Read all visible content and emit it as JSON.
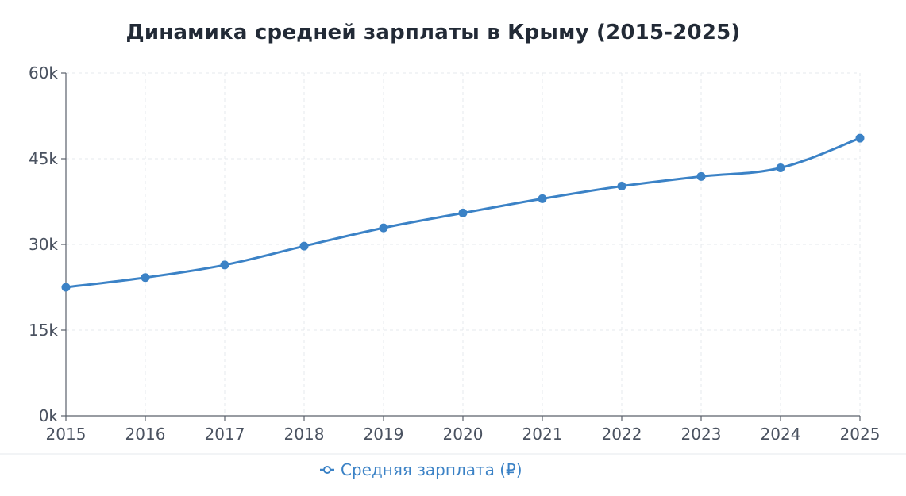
{
  "chart_data": {
    "type": "line",
    "title": "Динамика средней зарплаты в Крыму (2015-2025)",
    "xlabel": "",
    "ylabel": "",
    "x": [
      "2015",
      "2016",
      "2017",
      "2018",
      "2019",
      "2020",
      "2021",
      "2022",
      "2023",
      "2024",
      "2025"
    ],
    "series": [
      {
        "name": "Средняя зарплата (₽)",
        "values": [
          22500,
          24200,
          26400,
          29700,
          32900,
          35500,
          38000,
          40200,
          41900,
          43400,
          48600
        ],
        "color": "#3b82c6"
      }
    ],
    "ylim": [
      0,
      60000
    ],
    "yticks": [
      0,
      15000,
      30000,
      45000,
      60000
    ],
    "ytick_labels": [
      "0k",
      "15k",
      "30k",
      "45k",
      "60k"
    ],
    "grid": true,
    "legend": "bottom"
  }
}
